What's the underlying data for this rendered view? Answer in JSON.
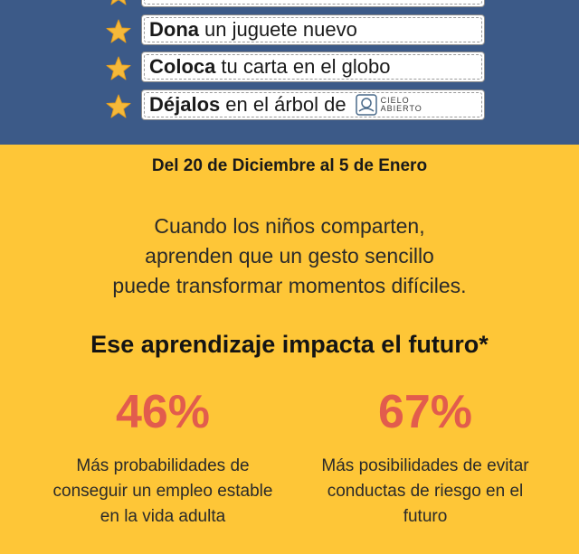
{
  "steps": [
    {
      "bold": "",
      "text": ""
    },
    {
      "bold": "Dona",
      "text": "un juguete nuevo"
    },
    {
      "bold": "Coloca",
      "text": "tu carta en el globo"
    },
    {
      "bold": "Déjalos",
      "text": "en el árbol de"
    }
  ],
  "logo": {
    "line1": "CIELO",
    "line2": "ABIERTO"
  },
  "dates": "Del 20 de Diciembre al 5 de Enero",
  "message": {
    "line1": "Cuando los niños comparten,",
    "line2": "aprenden que un gesto sencillo",
    "line3": "puede transformar momentos difíciles."
  },
  "headline": "Ese aprendizaje impacta el futuro*",
  "stats": [
    {
      "percent": "46%",
      "line1": "Más probabilidades de",
      "line2": "conseguir un empleo estable",
      "line3": "en la vida adulta"
    },
    {
      "percent": "67%",
      "line1": "Más posibilidades de evitar",
      "line2": "conductas de riesgo en el",
      "line3": "futuro"
    }
  ],
  "colors": {
    "top_band": "#3c5a88",
    "background": "#fec637",
    "accent": "#e25c4d",
    "star": "#f5b93a"
  }
}
